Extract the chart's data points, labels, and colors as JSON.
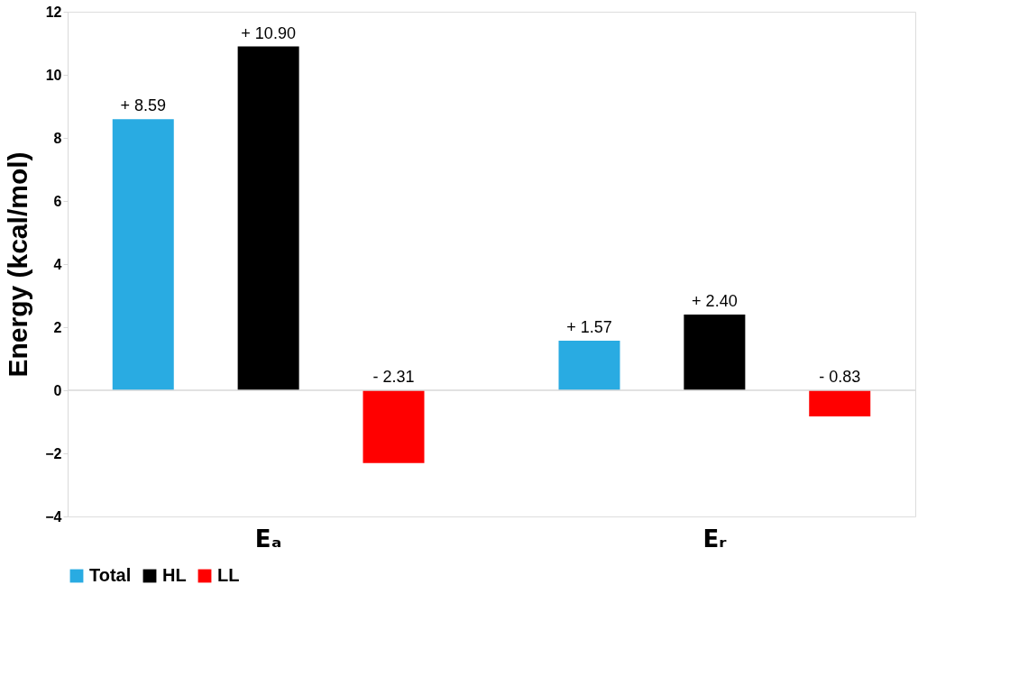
{
  "chart_data": {
    "type": "bar",
    "ylabel": "Energy (kcal/mol)",
    "categories": [
      "Eₐ",
      "Eᵣ"
    ],
    "series": [
      {
        "name": "Total",
        "color": "#29abe2",
        "values": [
          8.59,
          1.57
        ],
        "value_labels": [
          "+ 8.59",
          "+ 1.57"
        ]
      },
      {
        "name": "HL",
        "color": "#000000",
        "values": [
          10.9,
          2.4
        ],
        "value_labels": [
          "+ 10.90",
          "+ 2.40"
        ]
      },
      {
        "name": "LL",
        "color": "#ff0000",
        "values": [
          -2.31,
          -0.83
        ],
        "value_labels": [
          "- 2.31",
          "- 0.83"
        ]
      }
    ],
    "ylim": [
      -4,
      12
    ],
    "yticks": [
      -4,
      -2,
      0,
      2,
      4,
      6,
      8,
      10,
      12
    ],
    "grid": false,
    "legend": "bottom",
    "ref_lines": [
      {
        "axis": "y",
        "value": 0,
        "label": null,
        "color": "#d9d9d9"
      }
    ]
  }
}
